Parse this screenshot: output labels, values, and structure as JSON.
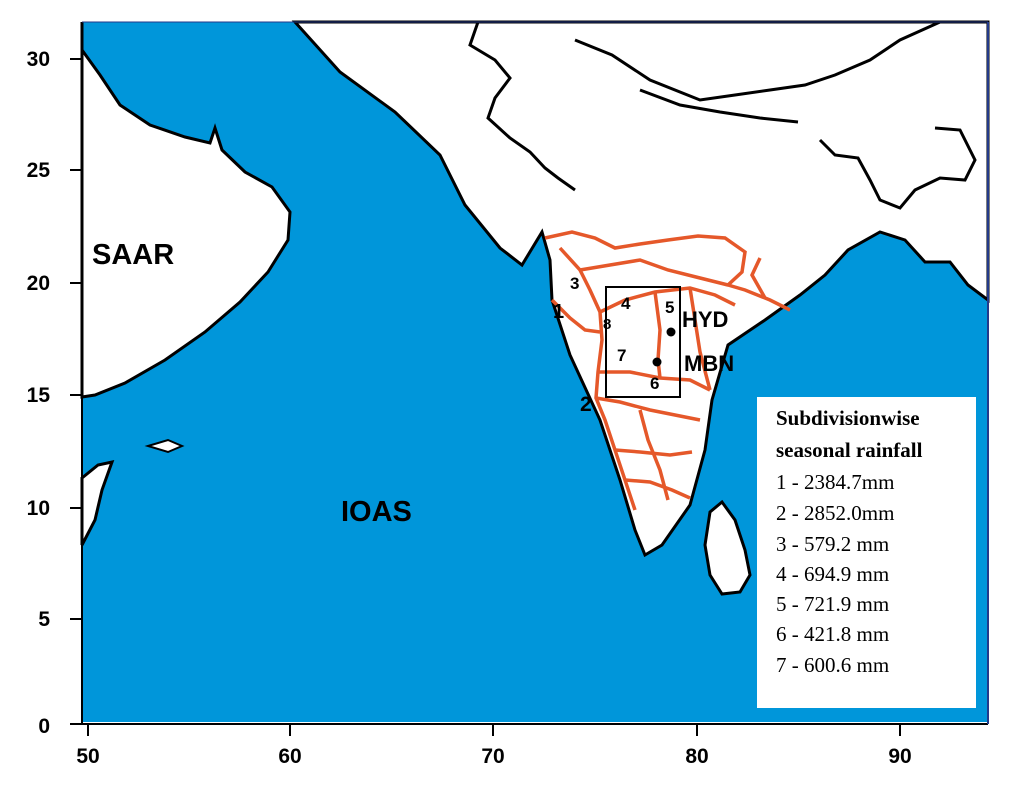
{
  "map": {
    "axes": {
      "x_ticks": [
        "50",
        "60",
        "70",
        "80",
        "90"
      ],
      "y_ticks": [
        "30",
        "25",
        "20",
        "15",
        "10",
        "5",
        "0"
      ]
    },
    "colors": {
      "ocean": "#0096da",
      "land": "#ffffff",
      "coastline": "#000000",
      "subdivision_boundary": "#e5582a"
    },
    "regions": {
      "saar": "SAAR",
      "ioas": "IOAS"
    },
    "stations": [
      "HYD",
      "MBN"
    ],
    "subdivision_labels": [
      "1",
      "2",
      "3",
      "4",
      "5",
      "6",
      "7",
      "8"
    ]
  },
  "legend": {
    "title_line1": "Subdivisionwise",
    "title_line2": "seasonal rainfall",
    "items": [
      "1 - 2384.7mm",
      "2 - 2852.0mm",
      "3 - 579.2 mm",
      "4 - 694.9 mm",
      "5 - 721.9 mm",
      "6 - 421.8 mm",
      "7 - 600.6 mm"
    ]
  }
}
